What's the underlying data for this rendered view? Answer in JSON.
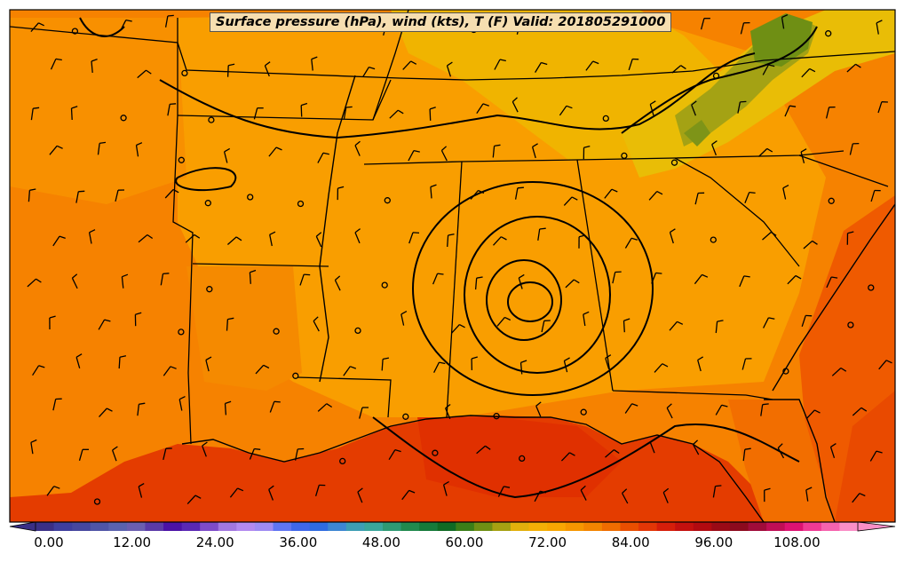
{
  "map": {
    "title": "Surface pressure (hPa), wind (kts), T (F) Valid: 201805291000",
    "colorbar": {
      "tick_labels": [
        "0.00",
        "12.00",
        "24.00",
        "36.00",
        "48.00",
        "60.00",
        "72.00",
        "84.00",
        "96.00",
        "108.00"
      ],
      "colors": [
        "#3a2f86",
        "#3e3e9e",
        "#46479f",
        "#4f55a6",
        "#5a62ae",
        "#6b5eb0",
        "#5b3aa8",
        "#4b12a6",
        "#5a28b4",
        "#7e4bc8",
        "#a277df",
        "#b38aef",
        "#9f8bf2",
        "#5f75f2",
        "#3f67ea",
        "#2f6be0",
        "#3d86d2",
        "#3d9eb4",
        "#3aa69b",
        "#2f9a74",
        "#218a4e",
        "#167a3a",
        "#0f6a24",
        "#3a7e18",
        "#6f8f14",
        "#a6a112",
        "#e2b00c",
        "#f4b006",
        "#f8a602",
        "#f69600",
        "#f38400",
        "#ef6c00",
        "#e94e00",
        "#e33606",
        "#d61e0a",
        "#c4100e",
        "#b20a10",
        "#9a0a16",
        "#8c0a1e",
        "#a00c3a",
        "#c00e56",
        "#dd1272",
        "#ef3a94",
        "#f563ae",
        "#fa8ec6"
      ]
    }
  }
}
